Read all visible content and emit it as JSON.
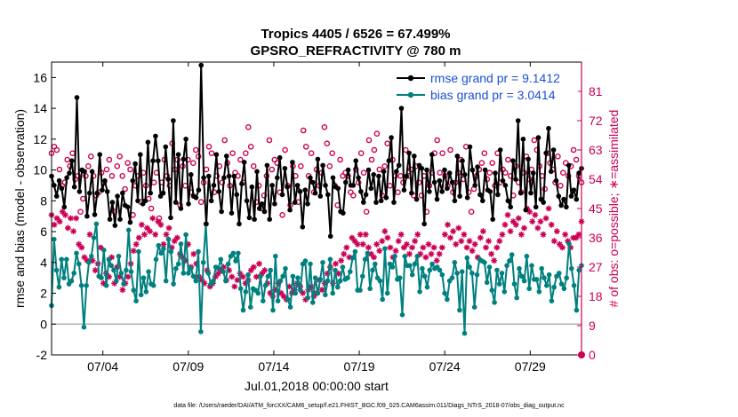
{
  "chart_data": {
    "type": "line",
    "title": "Tropics 4405 / 6526 = 67.499%",
    "subtitle": "GPSRO_REFRACTIVITY @ 780 m",
    "xlabel": "Jul.01,2018 00:00:00 start",
    "ylabel": "rmse and bias (model - observation)",
    "ylabel_right": "# of obs: o=possible; ∗=assimilated",
    "xlim": [
      0,
      31
    ],
    "ylim": [
      -2,
      17
    ],
    "ylim_right": [
      0,
      90
    ],
    "x_tick_values": [
      3,
      8,
      13,
      18,
      23,
      28
    ],
    "x_tick_labels": [
      "07/04",
      "07/09",
      "07/14",
      "07/19",
      "07/24",
      "07/29"
    ],
    "y_ticks": [
      "-2",
      "0",
      "2",
      "4",
      "6",
      "8",
      "10",
      "12",
      "14",
      "16"
    ],
    "y_tick_values": [
      -2,
      0,
      2,
      4,
      6,
      8,
      10,
      12,
      14,
      16
    ],
    "y_right_ticks": [
      "0",
      "9",
      "18",
      "27",
      "36",
      "45",
      "54",
      "63",
      "72",
      "81"
    ],
    "y_right_tick_values": [
      0,
      9,
      18,
      27,
      36,
      45,
      54,
      63,
      72,
      81
    ],
    "zero_line": true,
    "grid": false,
    "legend_position": "top-right",
    "series": [
      {
        "name": "rmse grand pr = 9.1412",
        "color": "#000000",
        "marker": "filled-circle",
        "values": [
          9.6,
          9.0,
          8.3,
          9.3,
          8.8,
          7.6,
          9.5,
          9.8,
          10.6,
          8.9,
          14.7,
          8.6,
          10.0,
          9.9,
          7.0,
          8.5,
          9.9,
          7.1,
          8.5,
          11.0,
          8.7,
          9.3,
          8.6,
          6.8,
          7.9,
          6.4,
          8.3,
          6.8,
          8.5,
          7.7,
          7.6,
          6.6,
          9.3,
          10.4,
          8.0,
          11.0,
          7.8,
          8.0,
          11.8,
          8.5,
          10.6,
          12.2,
          10.6,
          8.3,
          8.5,
          11.5,
          9.4,
          6.9,
          13.2,
          7.9,
          11.0,
          7.5,
          10.7,
          12.0,
          7.8,
          9.7,
          8.3,
          8.2,
          8.7,
          16.8,
          9.5,
          6.5,
          9.6,
          8.0,
          9.0,
          11.0,
          8.6,
          7.3,
          9.5,
          10.9,
          9.6,
          7.2,
          9.6,
          8.4,
          6.5,
          9.1,
          10.5,
          8.0,
          6.9,
          8.9,
          6.8,
          9.9,
          7.5,
          7.8,
          7.3,
          10.3,
          6.8,
          9.0,
          7.8,
          9.5,
          10.8,
          8.4,
          10.1,
          8.9,
          7.4,
          10.5,
          7.9,
          9.0,
          8.6,
          6.3,
          8.7,
          7.8,
          9.5,
          9.2,
          8.5,
          10.7,
          8.3,
          10.3,
          9.0,
          8.4,
          5.7,
          9.5,
          8.9,
          8.8,
          7.3,
          7.2,
          9.2,
          10.0,
          9.0,
          9.0,
          10.6,
          9.5,
          8.6,
          7.9,
          8.4,
          10.0,
          8.8,
          9.7,
          7.9,
          9.6,
          8.0,
          9.9,
          8.2,
          10.6,
          12.1,
          7.9,
          9.9,
          10.3,
          14.0,
          8.7,
          9.6,
          11.1,
          8.5,
          10.9,
          8.1,
          10.3,
          10.1,
          6.5,
          10.0,
          8.6,
          11.0,
          9.2,
          8.1,
          9.3,
          8.6,
          10.0,
          8.8,
          9.8,
          9.2,
          8.0,
          10.9,
          8.3,
          10.6,
          9.7,
          8.2,
          11.5,
          10.0,
          9.0,
          10.2,
          8.4,
          8.0,
          10.0,
          8.7,
          8.6,
          6.8,
          9.8,
          8.4,
          11.3,
          9.3,
          9.0,
          8.0,
          7.6,
          10.6,
          9.4,
          13.2,
          8.5,
          12.0,
          7.4,
          10.7,
          8.5,
          9.8,
          7.6,
          12.1,
          8.1,
          7.9,
          11.1,
          12.7,
          9.9,
          11.3,
          9.3,
          8.3,
          7.7,
          8.1,
          7.6,
          10.3,
          8.3,
          8.7,
          8.1,
          9.8,
          10.1
        ]
      },
      {
        "name": "bias grand pr = 3.0414",
        "color": "#00807f",
        "marker": "filled-circle",
        "values": [
          1.2,
          5.5,
          3.5,
          2.4,
          4.2,
          3.0,
          4.2,
          2.6,
          2.8,
          3.3,
          4.6,
          3.9,
          2.5,
          -0.2,
          2.5,
          4.0,
          4.4,
          5.6,
          6.5,
          3.1,
          3.0,
          4.8,
          2.5,
          4.2,
          3.8,
          3.5,
          2.8,
          4.4,
          3.3,
          2.6,
          3.5,
          6.1,
          3.4,
          2.2,
          1.5,
          4.7,
          1.9,
          3.0,
          2.1,
          3.4,
          2.6,
          2.5,
          4.2,
          5.1,
          4.6,
          4.9,
          2.8,
          5.5,
          4.7,
          2.6,
          3.6,
          3.9,
          5.2,
          3.3,
          5.8,
          3.3,
          3.6,
          3.1,
          2.8,
          4.7,
          -0.5,
          4.0,
          6.5,
          3.3,
          2.6,
          2.8,
          3.7,
          3.6,
          4.2,
          3.4,
          2.8,
          3.9,
          4.4,
          4.6,
          4.1,
          4.6,
          2.3,
          0.9,
          2.1,
          3.2,
          1.1,
          2.3,
          2.2,
          2.0,
          3.1,
          1.5,
          2.5,
          3.1,
          3.5,
          0.9,
          4.4,
          1.5,
          2.8,
          3.1,
          3.6,
          1.6,
          1.1,
          3.1,
          2.0,
          3.0,
          2.2,
          3.9,
          4.1,
          1.7,
          3.9,
          1.4,
          3.0,
          2.0,
          2.9,
          4.0,
          1.9,
          2.8,
          4.2,
          2.0,
          3.5,
          2.4,
          2.8,
          3.7,
          2.9,
          3.0,
          3.4,
          4.3,
          4.7,
          2.2,
          2.2,
          3.1,
          4.2,
          4.6,
          2.3,
          3.5,
          3.9,
          3.0,
          2.8,
          1.6,
          4.9,
          2.0,
          3.9,
          3.7,
          4.4,
          2.9,
          3.0,
          0.6,
          4.4,
          3.8,
          3.8,
          3.2,
          3.9,
          4.4,
          2.1,
          3.6,
          3.1,
          2.4,
          3.5,
          3.9,
          3.6,
          3.7,
          3.5,
          3.2,
          2.0,
          1.6,
          2.8,
          3.0,
          4.0,
          3.3,
          0.9,
          3.4,
          -0.6,
          4.3,
          3.7,
          3.3,
          1.1,
          3.2,
          4.2,
          4.1,
          4.0,
          2.7,
          3.7,
          2.2,
          1.4,
          3.5,
          2.6,
          3.3,
          2.1,
          3.8,
          4.1,
          4.5,
          2.6,
          1.7,
          3.6,
          3.1,
          2.8,
          4.4,
          2.3,
          3.8,
          2.9,
          2.9,
          2.1,
          3.6,
          3.0,
          2.5,
          3.2,
          1.5,
          2.4,
          3.1,
          3.3,
          2.6,
          2.3,
          3.0,
          5.2,
          3.6,
          2.5,
          0.9,
          3.5,
          3.8
        ]
      },
      {
        "name": "possible",
        "color": "#cc0055",
        "marker": "open-circle",
        "axis": "right",
        "values": [
          62,
          64,
          63,
          57,
          52,
          53,
          60,
          58,
          62,
          54,
          55,
          44,
          48,
          55,
          58,
          61,
          55,
          49,
          50,
          56,
          53,
          57,
          60,
          55,
          44,
          58,
          61,
          55,
          51,
          59,
          57,
          43,
          52,
          55,
          47,
          56,
          52,
          48,
          45,
          53,
          56,
          42,
          53,
          60,
          55,
          52,
          65,
          57,
          60,
          46,
          58,
          52,
          60,
          50,
          59,
          63,
          61,
          47,
          53,
          57,
          64,
          62,
          50,
          55,
          58,
          53,
          66,
          59,
          52,
          62,
          56,
          55,
          60,
          53,
          62,
          70,
          64,
          58,
          47,
          52,
          45,
          49,
          55,
          66,
          57,
          60,
          59,
          50,
          43,
          63,
          52,
          46,
          58,
          55,
          47,
          58,
          69,
          64,
          55,
          62,
          50,
          57,
          52,
          56,
          70,
          65,
          58,
          62,
          52,
          46,
          60,
          55,
          56,
          55,
          50,
          49,
          57,
          53,
          62,
          56,
          44,
          66,
          60,
          63,
          68,
          57,
          49,
          58,
          65,
          52,
          60,
          55,
          50,
          55,
          53,
          63,
          55,
          57,
          49,
          58,
          53,
          49,
          55,
          44,
          52,
          56,
          62,
          66,
          56,
          62,
          55,
          52,
          63,
          50,
          53,
          56,
          60,
          54,
          64,
          50,
          44,
          51,
          55,
          57,
          59,
          62,
          54,
          56,
          59,
          52,
          62,
          53,
          57,
          56,
          60,
          55,
          49,
          58,
          53,
          50,
          56,
          61,
          54,
          57,
          66,
          63,
          58,
          55,
          51,
          62,
          59,
          57,
          53,
          61,
          52,
          56,
          59,
          55,
          58,
          63,
          60,
          55,
          53
        ]
      },
      {
        "name": "assimilated",
        "color": "#cc0055",
        "marker": "asterisk",
        "axis": "right",
        "values": [
          43,
          40,
          42,
          41,
          44,
          43,
          39,
          42,
          38,
          42,
          34,
          33,
          30,
          29,
          37,
          29,
          26,
          28,
          33,
          22,
          25,
          24,
          30,
          22,
          27,
          24,
          20,
          22,
          24,
          28,
          32,
          34,
          36,
          40,
          37,
          39,
          38,
          42,
          37,
          41,
          40,
          34,
          37,
          39,
          33,
          35,
          36,
          31,
          30,
          29,
          34,
          27,
          31,
          28,
          24,
          23,
          22,
          26,
          21,
          22,
          24,
          25,
          26,
          27,
          23,
          26,
          24,
          21,
          23,
          25,
          24,
          22,
          23,
          26,
          27,
          24,
          28,
          25,
          26,
          22,
          19,
          18,
          20,
          22,
          19,
          18,
          17,
          21,
          19,
          20,
          22,
          21,
          19,
          17,
          20,
          21,
          18,
          19,
          23,
          20,
          22,
          25,
          27,
          22,
          28,
          25,
          29,
          31,
          33,
          30,
          36,
          35,
          34,
          37,
          34,
          37,
          33,
          31,
          30,
          34,
          32,
          35,
          38,
          36,
          33,
          30,
          32,
          35,
          37,
          33,
          34,
          31,
          33,
          35,
          37,
          31,
          33,
          30,
          34,
          31,
          33,
          29,
          31,
          33,
          37,
          40,
          36,
          38,
          34,
          39,
          35,
          37,
          33,
          35,
          32,
          34,
          30,
          36,
          38,
          33,
          35,
          31,
          29,
          33,
          35,
          37,
          40,
          43,
          38,
          41,
          40,
          42,
          37,
          39,
          45,
          44,
          41,
          43,
          39,
          41,
          37,
          42,
          45,
          40,
          35,
          38,
          34,
          33,
          37,
          35,
          33,
          36,
          36,
          37,
          41
        ]
      }
    ]
  },
  "footer": {
    "data_file": "data file: /Users/raeder/DAI/ATM_forcXX/CAM6_setup/f.e21.FHIST_BGC.f09_025.CAM6assim.011/Diags_NTrS_2018-07/obs_diag_output.nc"
  },
  "colors": {
    "rmse": "#000000",
    "bias": "#00807f",
    "obs": "#cc0055",
    "legend_text": "#1a4fd8",
    "zero_line": "#b0b0b0"
  }
}
